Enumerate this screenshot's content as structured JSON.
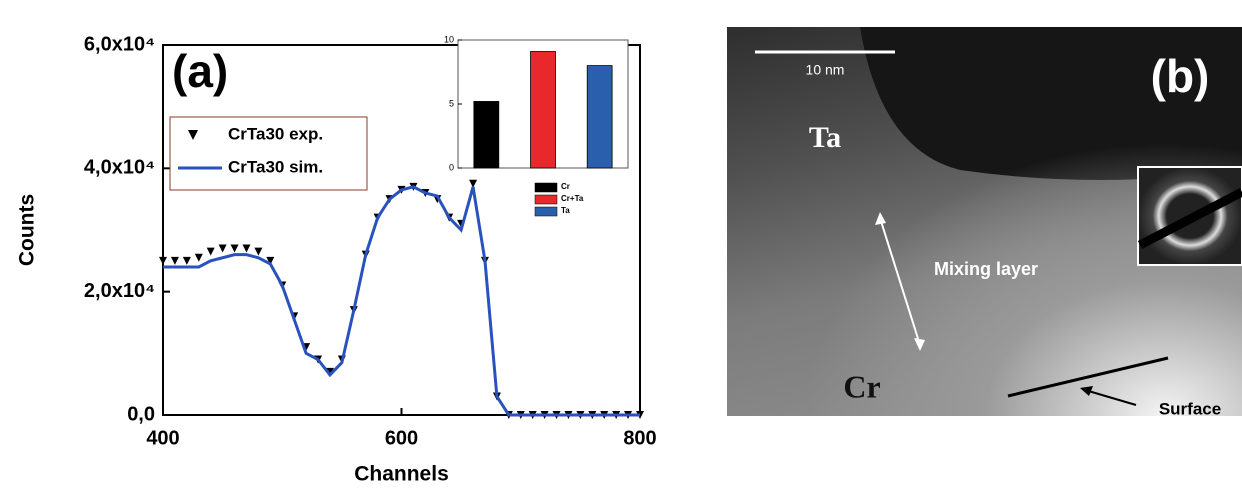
{
  "chart_data": [
    {
      "type": "line",
      "panel_label": "(a)",
      "x_label": "Channels",
      "y_label": "Counts",
      "x": [
        400,
        410,
        420,
        430,
        440,
        450,
        460,
        470,
        480,
        490,
        500,
        510,
        520,
        530,
        540,
        550,
        560,
        570,
        580,
        590,
        600,
        610,
        620,
        630,
        640,
        650,
        660,
        670,
        680,
        690,
        700,
        710,
        720,
        730,
        740,
        750,
        760,
        770,
        780,
        790,
        800
      ],
      "series": [
        {
          "name": "CrTa30 exp.",
          "color": "#000000",
          "marker": "triangle",
          "values": [
            25000,
            25000,
            25000,
            25500,
            26500,
            27000,
            27000,
            27000,
            26500,
            25000,
            21000,
            16000,
            11000,
            9000,
            7000,
            9000,
            17000,
            26000,
            32000,
            35000,
            36500,
            37000,
            36000,
            35000,
            32000,
            31000,
            37500,
            25000,
            3000,
            0,
            0,
            0,
            0,
            0,
            0,
            0,
            0,
            0,
            0,
            0,
            0
          ]
        },
        {
          "name": "CrTa30 sim.",
          "color": "#2a52be",
          "marker": "line",
          "values": [
            24000,
            24000,
            24000,
            24000,
            25000,
            25500,
            26000,
            26000,
            25500,
            24500,
            21000,
            15500,
            10000,
            9000,
            6500,
            8500,
            17000,
            26000,
            32000,
            35000,
            36500,
            37000,
            36000,
            35500,
            32000,
            30000,
            37000,
            25000,
            3000,
            0,
            0,
            0,
            0,
            0,
            0,
            0,
            0,
            0,
            0,
            0,
            0
          ]
        }
      ],
      "xlim": [
        400,
        800
      ],
      "xticks": [
        400,
        600,
        800
      ],
      "ylim": [
        0,
        60000
      ],
      "yticks": [
        {
          "value": 0,
          "label": "0,0"
        },
        {
          "value": 20000,
          "label": "2,0x10⁴"
        },
        {
          "value": 40000,
          "label": "4,0x10⁴"
        },
        {
          "value": 60000,
          "label": "6,0x10⁴"
        }
      ]
    },
    {
      "type": "bar",
      "categories": [
        "Cr",
        "Cr+Ta",
        "Ta"
      ],
      "values": [
        5.2,
        9.1,
        8
      ],
      "colors": [
        "#000000",
        "#e8282a",
        "#2a5fae"
      ],
      "ylim": [
        0,
        10
      ],
      "yticks": [
        0,
        5,
        10
      ]
    }
  ],
  "image_panel": {
    "panel_label": "(b)",
    "scale_bar": "10 nm",
    "labels": [
      "Ta",
      "Mixing layer",
      "Cr",
      "Surface"
    ]
  }
}
